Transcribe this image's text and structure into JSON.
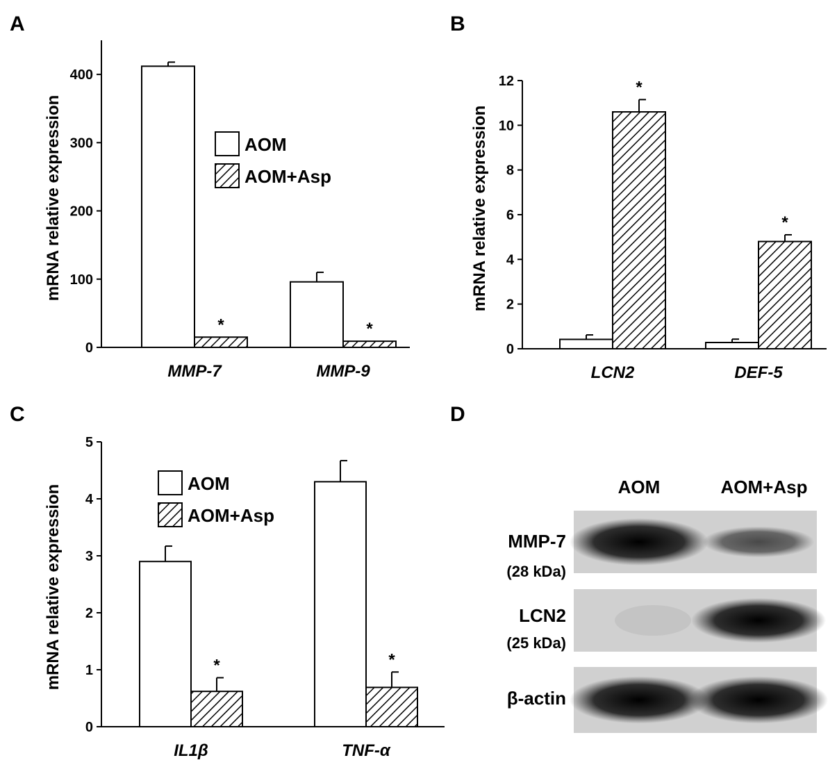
{
  "charts": [
    {
      "panel_label": "A",
      "chart_data": {
        "type": "bar",
        "categories": [
          "MMP-7",
          "MMP-9"
        ],
        "series": [
          {
            "name": "AOM",
            "values": [
              412,
              96
            ],
            "errors": [
              6,
              14
            ],
            "pattern": "open"
          },
          {
            "name": "AOM+Asp",
            "values": [
              15,
              9
            ],
            "errors": [
              0,
              0
            ],
            "pattern": "hatched"
          }
        ],
        "significance": [
          [
            "",
            "*"
          ],
          [
            "",
            "*"
          ]
        ],
        "ylabel": "mRNA relative expression",
        "ylim": [
          0,
          450
        ],
        "yticks": [
          0,
          100,
          200,
          300,
          400
        ],
        "legend": "center-right",
        "grid": false
      }
    },
    {
      "panel_label": "B",
      "chart_data": {
        "type": "bar",
        "categories": [
          "LCN2",
          "DEF-5"
        ],
        "series": [
          {
            "name": "AOM",
            "values": [
              0.42,
              0.28
            ],
            "errors": [
              0.2,
              0.15
            ],
            "pattern": "open"
          },
          {
            "name": "AOM+Asp",
            "values": [
              10.6,
              4.8
            ],
            "errors": [
              0.55,
              0.3
            ],
            "pattern": "hatched"
          }
        ],
        "significance": [
          [
            "",
            "*"
          ],
          [
            "",
            "*"
          ]
        ],
        "ylabel": "mRNA relative expression",
        "ylim": [
          0,
          12
        ],
        "yticks": [
          0,
          2,
          4,
          6,
          8,
          10,
          12
        ],
        "grid": false
      }
    },
    {
      "panel_label": "C",
      "chart_data": {
        "type": "bar",
        "categories": [
          "IL1β",
          "TNF-α"
        ],
        "series": [
          {
            "name": "AOM",
            "values": [
              2.9,
              4.3
            ],
            "errors": [
              0.27,
              0.37
            ],
            "pattern": "open"
          },
          {
            "name": "AOM+Asp",
            "values": [
              0.62,
              0.69
            ],
            "errors": [
              0.24,
              0.27
            ],
            "pattern": "hatched"
          }
        ],
        "significance": [
          [
            "",
            "*"
          ],
          [
            "",
            "*"
          ]
        ],
        "ylabel": "mRNA relative expression",
        "ylim": [
          0,
          5
        ],
        "yticks": [
          0,
          1,
          2,
          3,
          4,
          5
        ],
        "legend": "top-left",
        "grid": false
      }
    }
  ],
  "blot": {
    "panel_label": "D",
    "lanes": [
      "AOM",
      "AOM+Asp"
    ],
    "rows": [
      {
        "name": "MMP-7",
        "sub": "(28 kDa)",
        "intensities": [
          1.0,
          0.35
        ]
      },
      {
        "name": "LCN2",
        "sub": "(25 kDa)",
        "intensities": [
          0.05,
          0.9
        ]
      },
      {
        "name": "β-actin",
        "sub": "",
        "intensities": [
          1.0,
          1.0
        ]
      }
    ]
  }
}
